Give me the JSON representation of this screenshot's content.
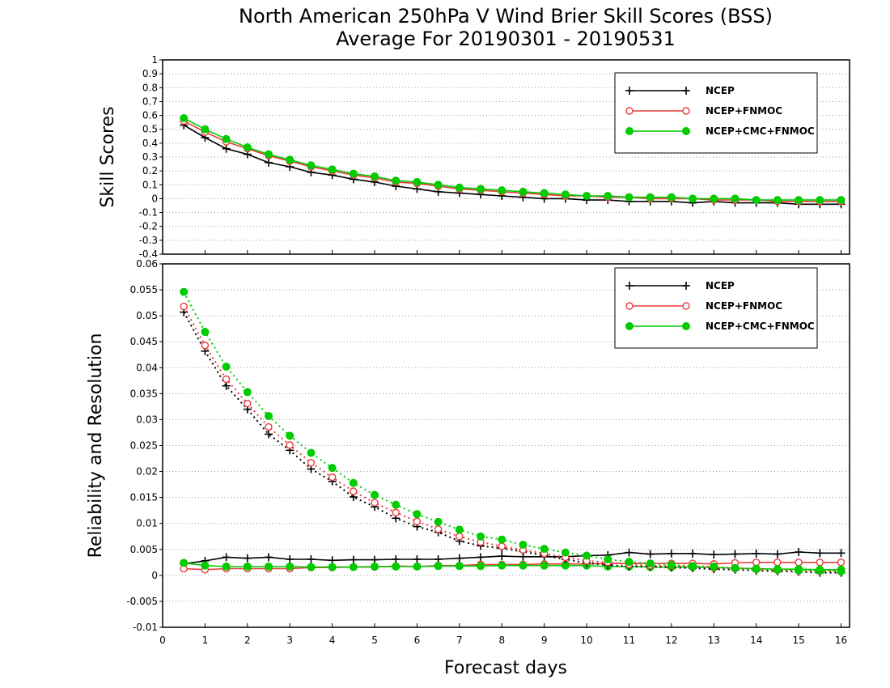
{
  "title_line1": "North American 250hPa V Wind Brier Skill Scores (BSS)",
  "title_line2": "Average For 20190301 - 20190531",
  "xlabel": "Forecast days",
  "x_ticks": [
    "0",
    "1",
    "2",
    "3",
    "4",
    "5",
    "6",
    "7",
    "8",
    "9",
    "10",
    "11",
    "12",
    "13",
    "14",
    "15",
    "16"
  ],
  "colors": {
    "NCEP": "#000000",
    "NCEP+FNMOC": "#e83c3c",
    "NCEP+CMC+FNMOC": "#00cc00"
  },
  "chart_data": [
    {
      "type": "line",
      "ylabel": "Skill Scores",
      "ylim": [
        -0.4,
        1
      ],
      "xlim": [
        0,
        16.2
      ],
      "y_ticks": [
        "1",
        "0.9",
        "0.8",
        "0.7",
        "0.6",
        "0.5",
        "0.4",
        "0.3",
        "0.2",
        "0.1",
        "0",
        "-0.1",
        "-0.2",
        "-0.3",
        "-0.4"
      ],
      "grid": "horizontal-dotted",
      "legend_position": "top-right",
      "x": [
        0.5,
        1,
        1.5,
        2,
        2.5,
        3,
        3.5,
        4,
        4.5,
        5,
        5.5,
        6,
        6.5,
        7,
        7.5,
        8,
        8.5,
        9,
        9.5,
        10,
        10.5,
        11,
        11.5,
        12,
        12.5,
        13,
        13.5,
        14,
        14.5,
        15,
        15.5,
        16
      ],
      "series": [
        {
          "name": "NCEP",
          "marker": "plus",
          "values": [
            0.53,
            0.44,
            0.36,
            0.32,
            0.26,
            0.23,
            0.19,
            0.17,
            0.14,
            0.12,
            0.09,
            0.07,
            0.05,
            0.04,
            0.03,
            0.02,
            0.01,
            0,
            0,
            -0.01,
            -0.01,
            -0.02,
            -0.02,
            -0.02,
            -0.03,
            -0.02,
            -0.03,
            -0.03,
            -0.03,
            -0.04,
            -0.04,
            -0.04
          ]
        },
        {
          "name": "NCEP+FNMOC",
          "marker": "open-circle",
          "values": [
            0.56,
            0.48,
            0.41,
            0.36,
            0.31,
            0.27,
            0.23,
            0.2,
            0.17,
            0.15,
            0.12,
            0.11,
            0.09,
            0.07,
            0.06,
            0.05,
            0.04,
            0.03,
            0.02,
            0.02,
            0.01,
            0.01,
            0,
            0,
            0,
            -0.01,
            -0.01,
            -0.01,
            -0.02,
            -0.02,
            -0.02,
            -0.02
          ]
        },
        {
          "name": "NCEP+CMC+FNMOC",
          "marker": "filled-circle",
          "values": [
            0.58,
            0.5,
            0.43,
            0.37,
            0.32,
            0.28,
            0.24,
            0.21,
            0.18,
            0.16,
            0.13,
            0.12,
            0.1,
            0.08,
            0.07,
            0.06,
            0.05,
            0.04,
            0.03,
            0.02,
            0.02,
            0.01,
            0.01,
            0.01,
            0,
            0,
            0,
            -0.01,
            -0.01,
            -0.01,
            -0.01,
            -0.01
          ]
        }
      ]
    },
    {
      "type": "line",
      "ylabel": "Reliability and Resolution",
      "ylim": [
        -0.01,
        0.06
      ],
      "xlim": [
        0,
        16.2
      ],
      "y_ticks": [
        "0.06",
        "0.055",
        "0.05",
        "0.045",
        "0.04",
        "0.035",
        "0.03",
        "0.025",
        "0.02",
        "0.015",
        "0.01",
        "0.005",
        "0",
        "-0.005",
        "-0.01"
      ],
      "grid": "horizontal-dotted",
      "legend_position": "top-right",
      "x": [
        0.5,
        1,
        1.5,
        2,
        2.5,
        3,
        3.5,
        4,
        4.5,
        5,
        5.5,
        6,
        6.5,
        7,
        7.5,
        8,
        8.5,
        9,
        9.5,
        10,
        10.5,
        11,
        11.5,
        12,
        12.5,
        13,
        13.5,
        14,
        14.5,
        15,
        15.5,
        16
      ],
      "series": [
        {
          "name": "NCEP",
          "style": "solid",
          "marker": "plus",
          "values": [
            0.0022,
            0.0028,
            0.0035,
            0.0033,
            0.0035,
            0.0031,
            0.0031,
            0.0029,
            0.003,
            0.003,
            0.0031,
            0.0031,
            0.0031,
            0.0033,
            0.0035,
            0.0037,
            0.0036,
            0.0036,
            0.0036,
            0.0038,
            0.0039,
            0.0044,
            0.0041,
            0.0042,
            0.0042,
            0.004,
            0.0041,
            0.0042,
            0.0041,
            0.0045,
            0.0043,
            0.0043
          ]
        },
        {
          "name": "NCEP+FNMOC",
          "style": "solid",
          "marker": "open-circle",
          "values": [
            0.0013,
            0.0011,
            0.0013,
            0.0013,
            0.0013,
            0.0013,
            0.0015,
            0.0015,
            0.0016,
            0.0016,
            0.0018,
            0.0017,
            0.0019,
            0.0019,
            0.0021,
            0.0021,
            0.0021,
            0.0022,
            0.0022,
            0.0022,
            0.0023,
            0.0023,
            0.0023,
            0.0023,
            0.0023,
            0.0022,
            0.0024,
            0.0025,
            0.0025,
            0.0025,
            0.0025,
            0.0025
          ]
        },
        {
          "name": "NCEP+CMC+FNMOC",
          "style": "solid",
          "marker": "filled-circle",
          "values": [
            0.0024,
            0.0019,
            0.0017,
            0.0017,
            0.0017,
            0.0017,
            0.0016,
            0.0016,
            0.0016,
            0.0017,
            0.0017,
            0.0017,
            0.0018,
            0.0018,
            0.0018,
            0.0019,
            0.0019,
            0.0019,
            0.0019,
            0.0019,
            0.0017,
            0.0017,
            0.0016,
            0.0016,
            0.0016,
            0.0015,
            0.0014,
            0.0013,
            0.0012,
            0.0012,
            0.0011,
            0.0011
          ]
        },
        {
          "name": "NCEP",
          "style": "dotted",
          "marker": "plus",
          "values": [
            0.0507,
            0.0432,
            0.0365,
            0.032,
            0.0272,
            0.0241,
            0.0205,
            0.0181,
            0.0151,
            0.0132,
            0.011,
            0.0094,
            0.0083,
            0.0066,
            0.0057,
            0.0052,
            0.0046,
            0.0038,
            0.0031,
            0.0024,
            0.002,
            0.0017,
            0.0017,
            0.0015,
            0.0014,
            0.0012,
            0.0011,
            0.0009,
            0.0008,
            0.0007,
            0.0005,
            0.0005
          ]
        },
        {
          "name": "NCEP+FNMOC",
          "style": "dotted",
          "marker": "open-circle",
          "values": [
            0.0518,
            0.0443,
            0.0378,
            0.0331,
            0.0286,
            0.0251,
            0.0217,
            0.0189,
            0.0162,
            0.014,
            0.0121,
            0.0104,
            0.0089,
            0.0075,
            0.0064,
            0.0056,
            0.0049,
            0.0042,
            0.0035,
            0.0028,
            0.0025,
            0.0021,
            0.0019,
            0.0018,
            0.0017,
            0.0015,
            0.0013,
            0.0012,
            0.001,
            0.0009,
            0.0008,
            0.0008
          ]
        },
        {
          "name": "NCEP+CMC+FNMOC",
          "style": "dotted",
          "marker": "filled-circle",
          "values": [
            0.0546,
            0.0469,
            0.0402,
            0.0353,
            0.0307,
            0.0269,
            0.0236,
            0.0207,
            0.0178,
            0.0155,
            0.0136,
            0.0118,
            0.0103,
            0.0088,
            0.0075,
            0.0069,
            0.0059,
            0.0051,
            0.0044,
            0.0038,
            0.0031,
            0.0026,
            0.0023,
            0.002,
            0.0018,
            0.0017,
            0.0014,
            0.0012,
            0.0011,
            0.001,
            0.0009,
            0.0008
          ]
        }
      ]
    }
  ]
}
